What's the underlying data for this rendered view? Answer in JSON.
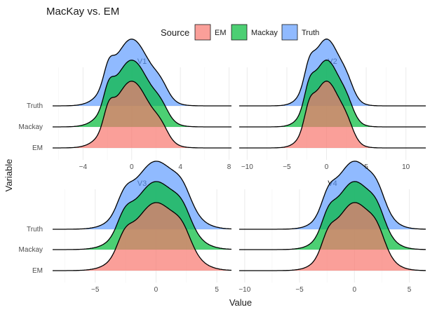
{
  "chart_data": {
    "type": "ridgeline",
    "title": "MacKay vs. EM",
    "xlabel": "Value",
    "ylabel": "Variable",
    "legend": {
      "title": "Source",
      "position": "top",
      "entries": [
        {
          "name": "EM",
          "color": "#F8766D"
        },
        {
          "name": "Mackay",
          "color": "#00BA38"
        },
        {
          "name": "Truth",
          "color": "#619CFF"
        }
      ]
    },
    "categories": [
      "EM",
      "Mackay",
      "Truth"
    ],
    "fill_opacity": 0.7,
    "grid": true,
    "panels": [
      {
        "name": "V1",
        "xlim": [
          -6.5,
          8.2
        ],
        "xticks": [
          -4,
          0,
          4,
          8
        ],
        "xtick_labels": [
          "−4",
          "0",
          "4",
          "8"
        ],
        "shape": {
          "sd": 1.5,
          "bumps": [
            [
              -1.9,
              0.25,
              0.4
            ],
            [
              2.4,
              0.15,
              0.6
            ]
          ]
        }
      },
      {
        "name": "V2",
        "xlim": [
          -11,
          12.5
        ],
        "xticks": [
          -10,
          -5,
          0,
          5,
          10
        ],
        "xtick_labels": [
          "−10",
          "−5",
          "0",
          "5",
          "10"
        ],
        "shape": {
          "sd": 1.8,
          "bumps": [
            [
              -2.2,
              0.25,
              0.6
            ],
            [
              2.6,
              0.15,
              0.8
            ]
          ]
        }
      },
      {
        "name": "V3",
        "xlim": [
          -8.5,
          6.2
        ],
        "xticks": [
          -5,
          0,
          5
        ],
        "xtick_labels": [
          "−5",
          "0",
          "5"
        ],
        "shape": {
          "sd": 1.9,
          "bumps": [
            [
              -2.6,
              0.22,
              0.6
            ],
            [
              2.2,
              0.2,
              0.7
            ]
          ]
        }
      },
      {
        "name": "V4",
        "xlim": [
          -10.5,
          6.5
        ],
        "xticks": [
          -10,
          -5,
          0,
          5
        ],
        "xtick_labels": [
          "−10",
          "−5",
          "0",
          "5"
        ],
        "shape": {
          "sd": 1.8,
          "bumps": [
            [
              -2.4,
              0.22,
              0.6
            ],
            [
              2.1,
              0.2,
              0.7
            ]
          ]
        }
      }
    ]
  }
}
